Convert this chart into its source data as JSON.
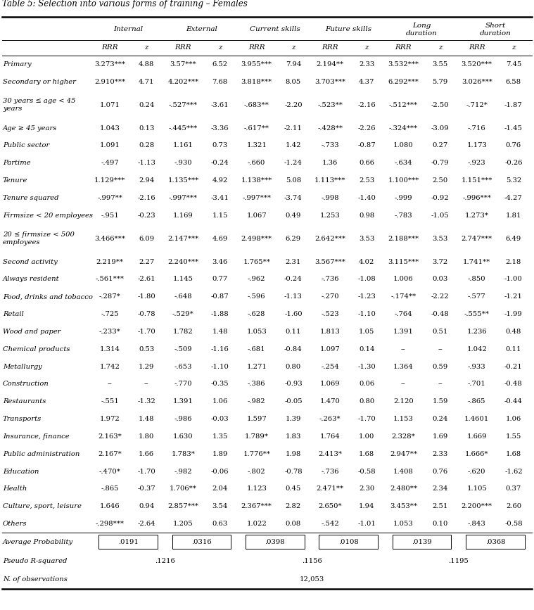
{
  "title": "Table 5: Selection into various forms of training – Females",
  "col_groups": [
    "Internal",
    "External",
    "Current skills",
    "Future skills",
    "Long\nduration",
    "Short\nduration"
  ],
  "col_headers": [
    "RRR",
    "z",
    "RRR",
    "z",
    "RRR",
    "z",
    "RRR",
    "z",
    "RRR",
    "z",
    "RRR",
    "z"
  ],
  "rows": [
    [
      "Primary",
      "3.273***",
      "4.88",
      "3.57***",
      "6.52",
      "3.955***",
      "7.94",
      "2.194**",
      "2.33",
      "3.532***",
      "3.55",
      "3.520***",
      "7.45"
    ],
    [
      "Secondary or higher",
      "2.910***",
      "4.71",
      "4.202***",
      "7.68",
      "3.818***",
      "8.05",
      "3.703***",
      "4.37",
      "6.292***",
      "5.79",
      "3.026***",
      "6.58"
    ],
    [
      "30 years ≤ age < 45\nyears",
      "1.071",
      "0.24",
      "-.527***",
      "-3.61",
      "-.683**",
      "-2.20",
      "-.523**",
      "-2.16",
      "-.512***",
      "-2.50",
      "-.712*",
      "-1.87"
    ],
    [
      "Age ≥ 45 years",
      "1.043",
      "0.13",
      "-.445***",
      "-3.36",
      "-.617**",
      "-2.11",
      "-.428**",
      "-2.26",
      "-.324***",
      "-3.09",
      "-.716",
      "-1.45"
    ],
    [
      "Public sector",
      "1.091",
      "0.28",
      "1.161",
      "0.73",
      "1.321",
      "1.42",
      "-.733",
      "-0.87",
      "1.080",
      "0.27",
      "1.173",
      "0.76"
    ],
    [
      "Partime",
      "-.497",
      "-1.13",
      "-.930",
      "-0.24",
      "-.660",
      "-1.24",
      "1.36",
      "0.66",
      "-.634",
      "-0.79",
      "-.923",
      "-0.26"
    ],
    [
      "Tenure",
      "1.129***",
      "2.94",
      "1.135***",
      "4.92",
      "1.138***",
      "5.08",
      "1.113***",
      "2.53",
      "1.100***",
      "2.50",
      "1.151***",
      "5.32"
    ],
    [
      "Tenure squared",
      "-.997**",
      "-2.16",
      "-.997***",
      "-3.41",
      "-.997***",
      "-3.74",
      "-.998",
      "-1.40",
      "-.999",
      "-0.92",
      "-.996***",
      "-4.27"
    ],
    [
      "Firmsize < 20 employees",
      "-.951",
      "-0.23",
      "1.169",
      "1.15",
      "1.067",
      "0.49",
      "1.253",
      "0.98",
      "-.783",
      "-1.05",
      "1.273*",
      "1.81"
    ],
    [
      "20 ≤ firmsize < 500\nemployees",
      "3.466***",
      "6.09",
      "2.147***",
      "4.69",
      "2.498***",
      "6.29",
      "2.642***",
      "3.53",
      "2.188***",
      "3.53",
      "2.747***",
      "6.49"
    ],
    [
      "Second activity",
      "2.219**",
      "2.27",
      "2.240***",
      "3.46",
      "1.765**",
      "2.31",
      "3.567***",
      "4.02",
      "3.115***",
      "3.72",
      "1.741**",
      "2.18"
    ],
    [
      "Always resident",
      "-.561***",
      "-2.61",
      "1.145",
      "0.77",
      "-.962",
      "-0.24",
      "-.736",
      "-1.08",
      "1.006",
      "0.03",
      "-.850",
      "-1.00"
    ],
    [
      "Food, drinks and tobacco",
      "-.287*",
      "-1.80",
      "-.648",
      "-0.87",
      "-.596",
      "-1.13",
      "-.270",
      "-1.23",
      "-.174**",
      "-2.22",
      "-.577",
      "-1.21"
    ],
    [
      "Retail",
      "-.725",
      "-0.78",
      "-.529*",
      "-1.88",
      "-.628",
      "-1.60",
      "-.523",
      "-1.10",
      "-.764",
      "-0.48",
      "-.555**",
      "-1.99"
    ],
    [
      "Wood and paper",
      "-.233*",
      "-1.70",
      "1.782",
      "1.48",
      "1.053",
      "0.11",
      "1.813",
      "1.05",
      "1.391",
      "0.51",
      "1.236",
      "0.48"
    ],
    [
      "Chemical products",
      "1.314",
      "0.53",
      "-.509",
      "-1.16",
      "-.681",
      "-0.84",
      "1.097",
      "0.14",
      "--",
      "--",
      "1.042",
      "0.11"
    ],
    [
      "Metallurgy",
      "1.742",
      "1.29",
      "-.653",
      "-1.10",
      "1.271",
      "0.80",
      "-.254",
      "-1.30",
      "1.364",
      "0.59",
      "-.933",
      "-0.21"
    ],
    [
      "Construction",
      "--",
      "--",
      "-.770",
      "-0.35",
      "-.386",
      "-0.93",
      "1.069",
      "0.06",
      "--",
      "--",
      "-.701",
      "-0.48"
    ],
    [
      "Restaurants",
      "-.551",
      "-1.32",
      "1.391",
      "1.06",
      "-.982",
      "-0.05",
      "1.470",
      "0.80",
      "2.120",
      "1.59",
      "-.865",
      "-0.44"
    ],
    [
      "Transports",
      "1.972",
      "1.48",
      "-.986",
      "-0.03",
      "1.597",
      "1.39",
      "-.263*",
      "-1.70",
      "1.153",
      "0.24",
      "1.4601",
      "1.06"
    ],
    [
      "Insurance, finance",
      "2.163*",
      "1.80",
      "1.630",
      "1.35",
      "1.789*",
      "1.83",
      "1.764",
      "1.00",
      "2.328*",
      "1.69",
      "1.669",
      "1.55"
    ],
    [
      "Public administration",
      "2.167*",
      "1.66",
      "1.783*",
      "1.89",
      "1.776**",
      "1.98",
      "2.413*",
      "1.68",
      "2.947**",
      "2.33",
      "1.666*",
      "1.68"
    ],
    [
      "Education",
      "-.470*",
      "-1.70",
      "-.982",
      "-0.06",
      "-.802",
      "-0.78",
      "-.736",
      "-0.58",
      "1.408",
      "0.76",
      "-.620",
      "-1.62"
    ],
    [
      "Health",
      "-.865",
      "-0.37",
      "1.706**",
      "2.04",
      "1.123",
      "0.45",
      "2.471**",
      "2.30",
      "2.480**",
      "2.34",
      "1.105",
      "0.37"
    ],
    [
      "Culture, sport, leisure",
      "1.646",
      "0.94",
      "2.857***",
      "3.54",
      "2.367***",
      "2.82",
      "2.650*",
      "1.94",
      "3.453**",
      "2.51",
      "2.200***",
      "2.60"
    ],
    [
      "Others",
      "-.298***",
      "-2.64",
      "1.205",
      "0.63",
      "1.022",
      "0.08",
      "-.542",
      "-1.01",
      "1.053",
      "0.10",
      "-.843",
      "-0.58"
    ]
  ],
  "avg_prob": [
    ".0191",
    ".0316",
    ".0398",
    ".0108",
    ".0139",
    ".0368"
  ],
  "pseudo_r2": [
    ".1216",
    ".1156",
    ".1195"
  ],
  "n_obs": "12,053",
  "fs_label": 7.2,
  "fs_data": 7.2,
  "fs_header": 7.5
}
